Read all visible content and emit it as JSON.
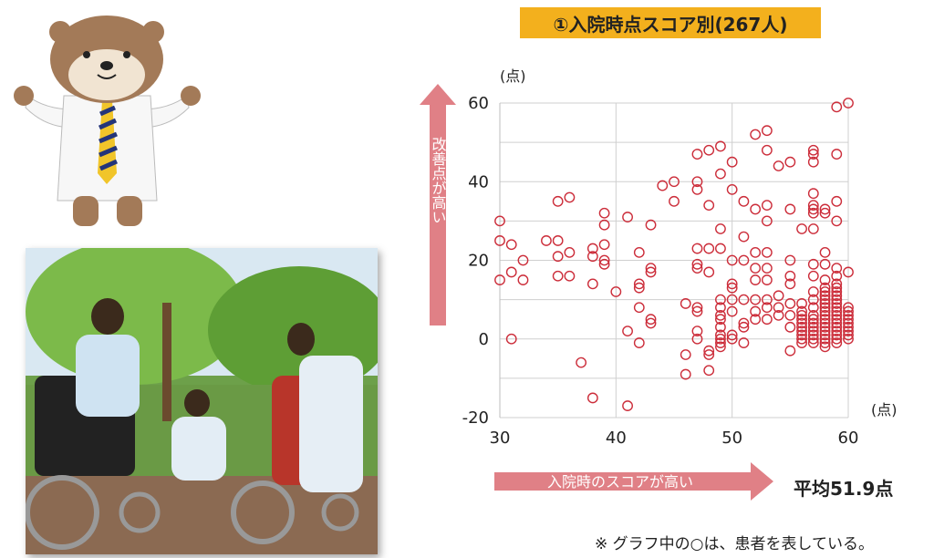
{
  "title": "①入院時点スコア別(267人)",
  "y_unit": "(点)",
  "x_unit": "(点)",
  "y_arrow_label": "改善点が高い",
  "x_arrow_label": "入院時のスコアが高い",
  "average_label": "平均51.9点",
  "note": "※ グラフ中の○は、患者を表している。",
  "colors": {
    "title_bg": "#f3b01d",
    "arrow": "#e08086",
    "marker": "#cc2d3a"
  },
  "chart_data": {
    "type": "scatter",
    "title": "①入院時点スコア別(267人)",
    "xlabel": "入院時のスコアが高い",
    "ylabel": "改善点が高い",
    "xlim": [
      30,
      60
    ],
    "ylim": [
      -20,
      60
    ],
    "x_ticks": [
      30,
      40,
      50,
      60
    ],
    "y_ticks": [
      -20,
      0,
      20,
      40,
      60
    ],
    "grid": true,
    "points": [
      [
        30,
        30
      ],
      [
        30,
        25
      ],
      [
        30,
        15
      ],
      [
        31,
        24
      ],
      [
        31,
        17
      ],
      [
        31,
        0
      ],
      [
        32,
        20
      ],
      [
        32,
        15
      ],
      [
        34,
        25
      ],
      [
        35,
        35
      ],
      [
        35,
        25
      ],
      [
        35,
        21
      ],
      [
        35,
        16
      ],
      [
        36,
        36
      ],
      [
        36,
        22
      ],
      [
        36,
        16
      ],
      [
        37,
        -6
      ],
      [
        38,
        23
      ],
      [
        38,
        21
      ],
      [
        38,
        14
      ],
      [
        38,
        -15
      ],
      [
        39,
        32
      ],
      [
        39,
        29
      ],
      [
        39,
        24
      ],
      [
        39,
        20
      ],
      [
        39,
        19
      ],
      [
        40,
        12
      ],
      [
        41,
        31
      ],
      [
        41,
        2
      ],
      [
        41,
        -17
      ],
      [
        42,
        22
      ],
      [
        42,
        14
      ],
      [
        42,
        13
      ],
      [
        42,
        8
      ],
      [
        42,
        -1
      ],
      [
        43,
        29
      ],
      [
        43,
        18
      ],
      [
        43,
        17
      ],
      [
        43,
        5
      ],
      [
        43,
        4
      ],
      [
        44,
        39
      ],
      [
        45,
        40
      ],
      [
        45,
        35
      ],
      [
        46,
        9
      ],
      [
        46,
        -4
      ],
      [
        46,
        -9
      ],
      [
        47,
        47
      ],
      [
        47,
        40
      ],
      [
        47,
        38
      ],
      [
        47,
        23
      ],
      [
        47,
        19
      ],
      [
        47,
        18
      ],
      [
        47,
        8
      ],
      [
        47,
        7
      ],
      [
        47,
        2
      ],
      [
        47,
        0
      ],
      [
        48,
        48
      ],
      [
        48,
        34
      ],
      [
        48,
        23
      ],
      [
        48,
        17
      ],
      [
        48,
        -3
      ],
      [
        48,
        -4
      ],
      [
        48,
        -8
      ],
      [
        49,
        49
      ],
      [
        49,
        42
      ],
      [
        49,
        28
      ],
      [
        49,
        23
      ],
      [
        49,
        10
      ],
      [
        49,
        8
      ],
      [
        49,
        6
      ],
      [
        49,
        5
      ],
      [
        49,
        3
      ],
      [
        49,
        1
      ],
      [
        49,
        0
      ],
      [
        49,
        -1
      ],
      [
        49,
        -2
      ],
      [
        50,
        45
      ],
      [
        50,
        38
      ],
      [
        50,
        20
      ],
      [
        50,
        14
      ],
      [
        50,
        13
      ],
      [
        50,
        10
      ],
      [
        50,
        7
      ],
      [
        50,
        1
      ],
      [
        50,
        0
      ],
      [
        51,
        35
      ],
      [
        51,
        26
      ],
      [
        51,
        20
      ],
      [
        51,
        10
      ],
      [
        51,
        4
      ],
      [
        51,
        3
      ],
      [
        51,
        -1
      ],
      [
        52,
        52
      ],
      [
        52,
        33
      ],
      [
        52,
        22
      ],
      [
        52,
        18
      ],
      [
        52,
        15
      ],
      [
        52,
        10
      ],
      [
        52,
        7
      ],
      [
        52,
        5
      ],
      [
        53,
        53
      ],
      [
        53,
        48
      ],
      [
        53,
        34
      ],
      [
        53,
        30
      ],
      [
        53,
        22
      ],
      [
        53,
        18
      ],
      [
        53,
        15
      ],
      [
        53,
        10
      ],
      [
        53,
        8
      ],
      [
        53,
        5
      ],
      [
        54,
        44
      ],
      [
        54,
        11
      ],
      [
        54,
        8
      ],
      [
        54,
        6
      ],
      [
        55,
        45
      ],
      [
        55,
        33
      ],
      [
        55,
        20
      ],
      [
        55,
        16
      ],
      [
        55,
        14
      ],
      [
        55,
        9
      ],
      [
        55,
        6
      ],
      [
        55,
        3
      ],
      [
        55,
        -3
      ],
      [
        56,
        28
      ],
      [
        56,
        9
      ],
      [
        56,
        7
      ],
      [
        56,
        6
      ],
      [
        56,
        5
      ],
      [
        56,
        4
      ],
      [
        56,
        3
      ],
      [
        56,
        2
      ],
      [
        56,
        1
      ],
      [
        56,
        0
      ],
      [
        56,
        -1
      ],
      [
        57,
        48
      ],
      [
        57,
        47
      ],
      [
        57,
        45
      ],
      [
        57,
        37
      ],
      [
        57,
        34
      ],
      [
        57,
        33
      ],
      [
        57,
        32
      ],
      [
        57,
        28
      ],
      [
        57,
        19
      ],
      [
        57,
        16
      ],
      [
        57,
        12
      ],
      [
        57,
        10
      ],
      [
        57,
        8
      ],
      [
        57,
        6
      ],
      [
        57,
        5
      ],
      [
        57,
        4
      ],
      [
        57,
        3
      ],
      [
        57,
        2
      ],
      [
        57,
        1
      ],
      [
        57,
        0
      ],
      [
        57,
        -1
      ],
      [
        58,
        33
      ],
      [
        58,
        32
      ],
      [
        58,
        22
      ],
      [
        58,
        19
      ],
      [
        58,
        15
      ],
      [
        58,
        13
      ],
      [
        58,
        12
      ],
      [
        58,
        11
      ],
      [
        58,
        10
      ],
      [
        58,
        9
      ],
      [
        58,
        8
      ],
      [
        58,
        7
      ],
      [
        58,
        6
      ],
      [
        58,
        5
      ],
      [
        58,
        4
      ],
      [
        58,
        3
      ],
      [
        58,
        2
      ],
      [
        58,
        1
      ],
      [
        58,
        0
      ],
      [
        58,
        -1
      ],
      [
        58,
        -2
      ],
      [
        59,
        59
      ],
      [
        59,
        47
      ],
      [
        59,
        35
      ],
      [
        59,
        30
      ],
      [
        59,
        18
      ],
      [
        59,
        16
      ],
      [
        59,
        14
      ],
      [
        59,
        13
      ],
      [
        59,
        12
      ],
      [
        59,
        11
      ],
      [
        59,
        10
      ],
      [
        59,
        9
      ],
      [
        59,
        8
      ],
      [
        59,
        7
      ],
      [
        59,
        6
      ],
      [
        59,
        5
      ],
      [
        59,
        4
      ],
      [
        59,
        3
      ],
      [
        59,
        2
      ],
      [
        59,
        1
      ],
      [
        59,
        0
      ],
      [
        59,
        -1
      ],
      [
        60,
        60
      ],
      [
        60,
        17
      ],
      [
        60,
        8
      ],
      [
        60,
        7
      ],
      [
        60,
        6
      ],
      [
        60,
        5
      ],
      [
        60,
        4
      ],
      [
        60,
        3
      ],
      [
        60,
        2
      ],
      [
        60,
        1
      ],
      [
        60,
        0
      ]
    ]
  }
}
